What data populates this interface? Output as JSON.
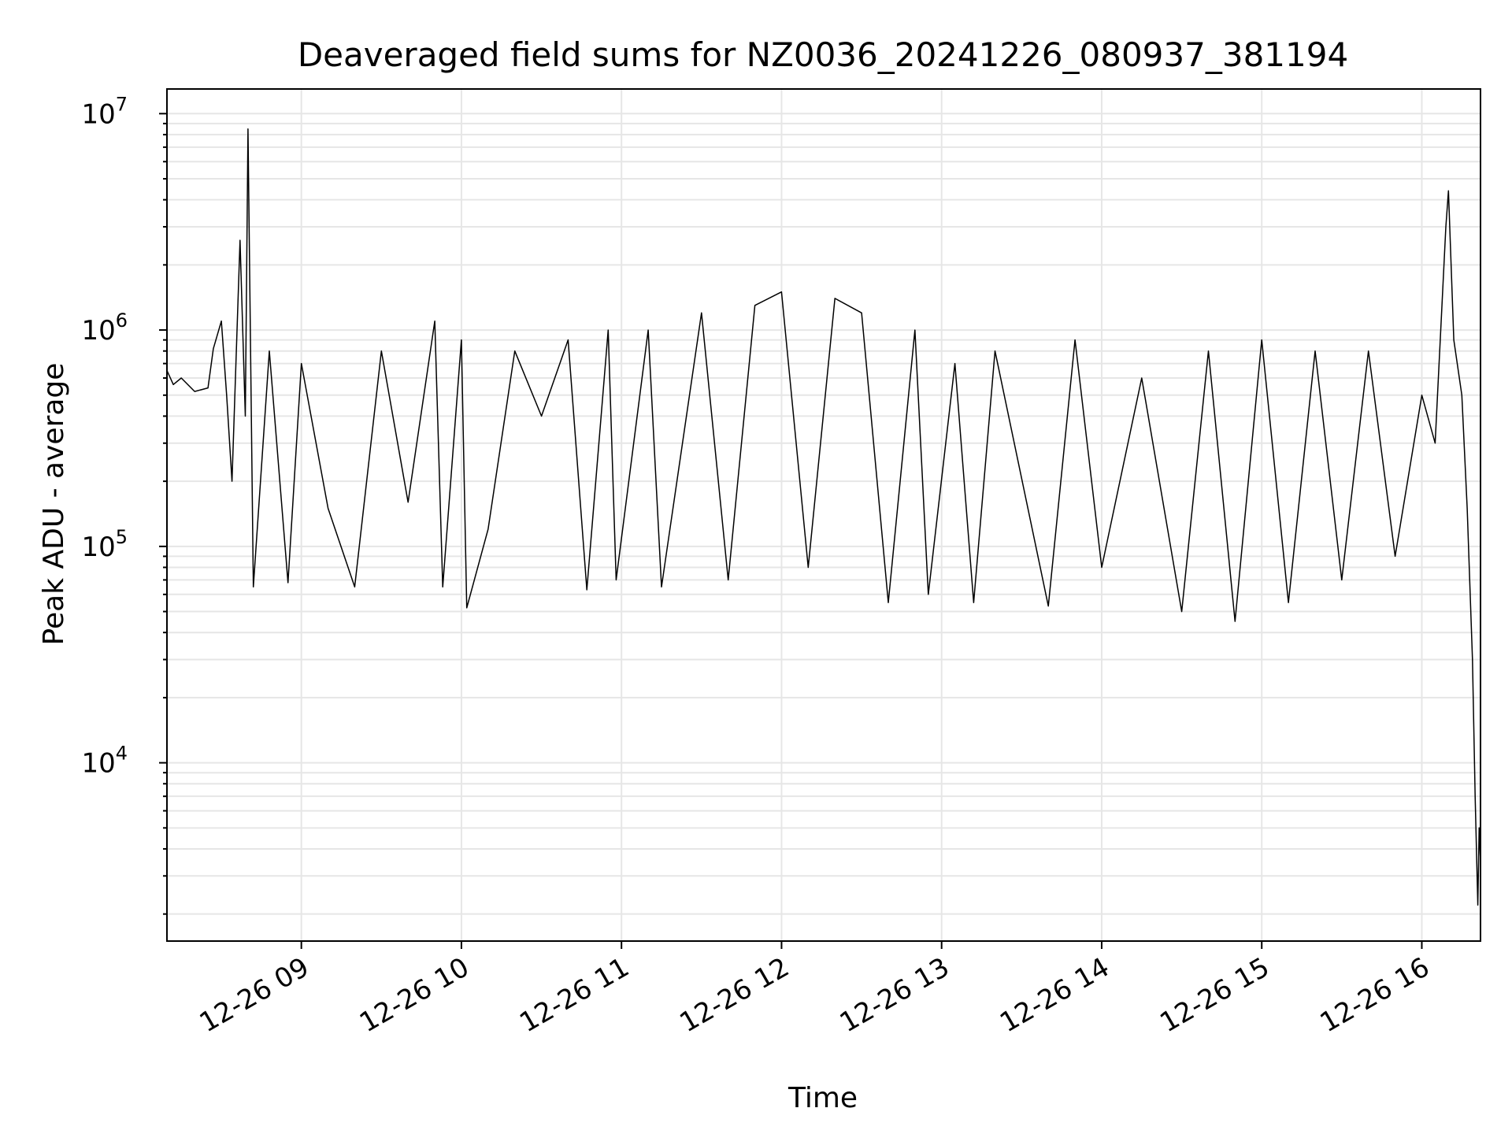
{
  "chart_data": {
    "type": "line",
    "title": "Deaveraged field sums for NZ0036_20241226_080937_381194",
    "xlabel": "Time",
    "ylabel": "Peak ADU - average",
    "yscale": "log",
    "ylim": [
      1500,
      13000000
    ],
    "xlim": [
      "2024-12-26 08:09:37",
      "2024-12-26 16:22:00"
    ],
    "x_ticks": [
      {
        "t": "2024-12-26 09:00",
        "label": "12-26 09"
      },
      {
        "t": "2024-12-26 10:00",
        "label": "12-26 10"
      },
      {
        "t": "2024-12-26 11:00",
        "label": "12-26 11"
      },
      {
        "t": "2024-12-26 12:00",
        "label": "12-26 12"
      },
      {
        "t": "2024-12-26 13:00",
        "label": "12-26 13"
      },
      {
        "t": "2024-12-26 14:00",
        "label": "12-26 14"
      },
      {
        "t": "2024-12-26 15:00",
        "label": "12-26 15"
      },
      {
        "t": "2024-12-26 16:00",
        "label": "12-26 16"
      }
    ],
    "y_ticks": [
      {
        "value": 10000,
        "base": "10",
        "exp": "4"
      },
      {
        "value": 100000,
        "base": "10",
        "exp": "5"
      },
      {
        "value": 1000000,
        "base": "10",
        "exp": "6"
      },
      {
        "value": 10000000,
        "base": "10",
        "exp": "7"
      }
    ],
    "grid": true,
    "line_color": "#000000",
    "series": [
      {
        "points": [
          [
            "2024-12-26 08:09:37",
            650000
          ],
          [
            "2024-12-26 08:12",
            560000
          ],
          [
            "2024-12-26 08:15",
            600000
          ],
          [
            "2024-12-26 08:20",
            520000
          ],
          [
            "2024-12-26 08:25",
            540000
          ],
          [
            "2024-12-26 08:27",
            820000
          ],
          [
            "2024-12-26 08:30",
            1100000
          ],
          [
            "2024-12-26 08:32",
            500000
          ],
          [
            "2024-12-26 08:34",
            200000
          ],
          [
            "2024-12-26 08:37",
            2600000
          ],
          [
            "2024-12-26 08:39",
            400000
          ],
          [
            "2024-12-26 08:40",
            8500000
          ],
          [
            "2024-12-26 08:42",
            65000
          ],
          [
            "2024-12-26 08:48",
            800000
          ],
          [
            "2024-12-26 08:55",
            68000
          ],
          [
            "2024-12-26 09:00",
            700000
          ],
          [
            "2024-12-26 09:10",
            150000
          ],
          [
            "2024-12-26 09:20",
            65000
          ],
          [
            "2024-12-26 09:30",
            800000
          ],
          [
            "2024-12-26 09:40",
            160000
          ],
          [
            "2024-12-26 09:50",
            1100000
          ],
          [
            "2024-12-26 09:53",
            65000
          ],
          [
            "2024-12-26 10:00",
            900000
          ],
          [
            "2024-12-26 10:02",
            52000
          ],
          [
            "2024-12-26 10:10",
            120000
          ],
          [
            "2024-12-26 10:20",
            800000
          ],
          [
            "2024-12-26 10:30",
            400000
          ],
          [
            "2024-12-26 10:40",
            900000
          ],
          [
            "2024-12-26 10:47",
            63000
          ],
          [
            "2024-12-26 10:55",
            1000000
          ],
          [
            "2024-12-26 10:58",
            70000
          ],
          [
            "2024-12-26 11:10",
            1000000
          ],
          [
            "2024-12-26 11:15",
            65000
          ],
          [
            "2024-12-26 11:30",
            1200000
          ],
          [
            "2024-12-26 11:40",
            70000
          ],
          [
            "2024-12-26 11:50",
            1300000
          ],
          [
            "2024-12-26 12:00",
            1500000
          ],
          [
            "2024-12-26 12:10",
            80000
          ],
          [
            "2024-12-26 12:20",
            1400000
          ],
          [
            "2024-12-26 12:30",
            1200000
          ],
          [
            "2024-12-26 12:40",
            55000
          ],
          [
            "2024-12-26 12:50",
            1000000
          ],
          [
            "2024-12-26 12:55",
            60000
          ],
          [
            "2024-12-26 13:05",
            700000
          ],
          [
            "2024-12-26 13:12",
            55000
          ],
          [
            "2024-12-26 13:20",
            800000
          ],
          [
            "2024-12-26 13:40",
            53000
          ],
          [
            "2024-12-26 13:50",
            900000
          ],
          [
            "2024-12-26 14:00",
            80000
          ],
          [
            "2024-12-26 14:15",
            600000
          ],
          [
            "2024-12-26 14:30",
            50000
          ],
          [
            "2024-12-26 14:40",
            800000
          ],
          [
            "2024-12-26 14:50",
            45000
          ],
          [
            "2024-12-26 15:00",
            900000
          ],
          [
            "2024-12-26 15:10",
            55000
          ],
          [
            "2024-12-26 15:20",
            800000
          ],
          [
            "2024-12-26 15:30",
            70000
          ],
          [
            "2024-12-26 15:40",
            800000
          ],
          [
            "2024-12-26 15:50",
            90000
          ],
          [
            "2024-12-26 16:00",
            500000
          ],
          [
            "2024-12-26 16:05",
            300000
          ],
          [
            "2024-12-26 16:09",
            3000000
          ],
          [
            "2024-12-26 16:10",
            4400000
          ],
          [
            "2024-12-26 16:12",
            900000
          ],
          [
            "2024-12-26 16:15",
            500000
          ],
          [
            "2024-12-26 16:17",
            150000
          ],
          [
            "2024-12-26 16:19",
            30000
          ],
          [
            "2024-12-26 16:20",
            7000
          ],
          [
            "2024-12-26 16:21",
            2200
          ],
          [
            "2024-12-26 16:21:30",
            5000
          ],
          [
            "2024-12-26 16:22",
            3500
          ]
        ]
      }
    ]
  }
}
